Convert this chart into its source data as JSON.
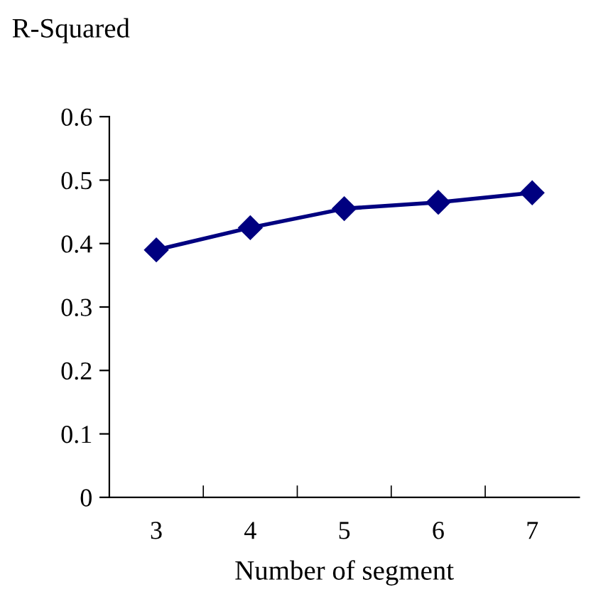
{
  "chart_data": {
    "type": "line",
    "ylabel": "R-Squared",
    "xlabel": "Number of segment",
    "categories": [
      "3",
      "4",
      "5",
      "6",
      "7"
    ],
    "series": [
      {
        "color": "#000080",
        "values": [
          0.39,
          0.425,
          0.455,
          0.465,
          0.48
        ]
      }
    ],
    "ylim": [
      0,
      0.6
    ],
    "yticks": [
      0,
      0.1,
      0.2,
      0.3,
      0.4,
      0.5,
      0.6
    ],
    "marker": "diamond",
    "line_style": "solid",
    "grid": false,
    "legend": false
  }
}
